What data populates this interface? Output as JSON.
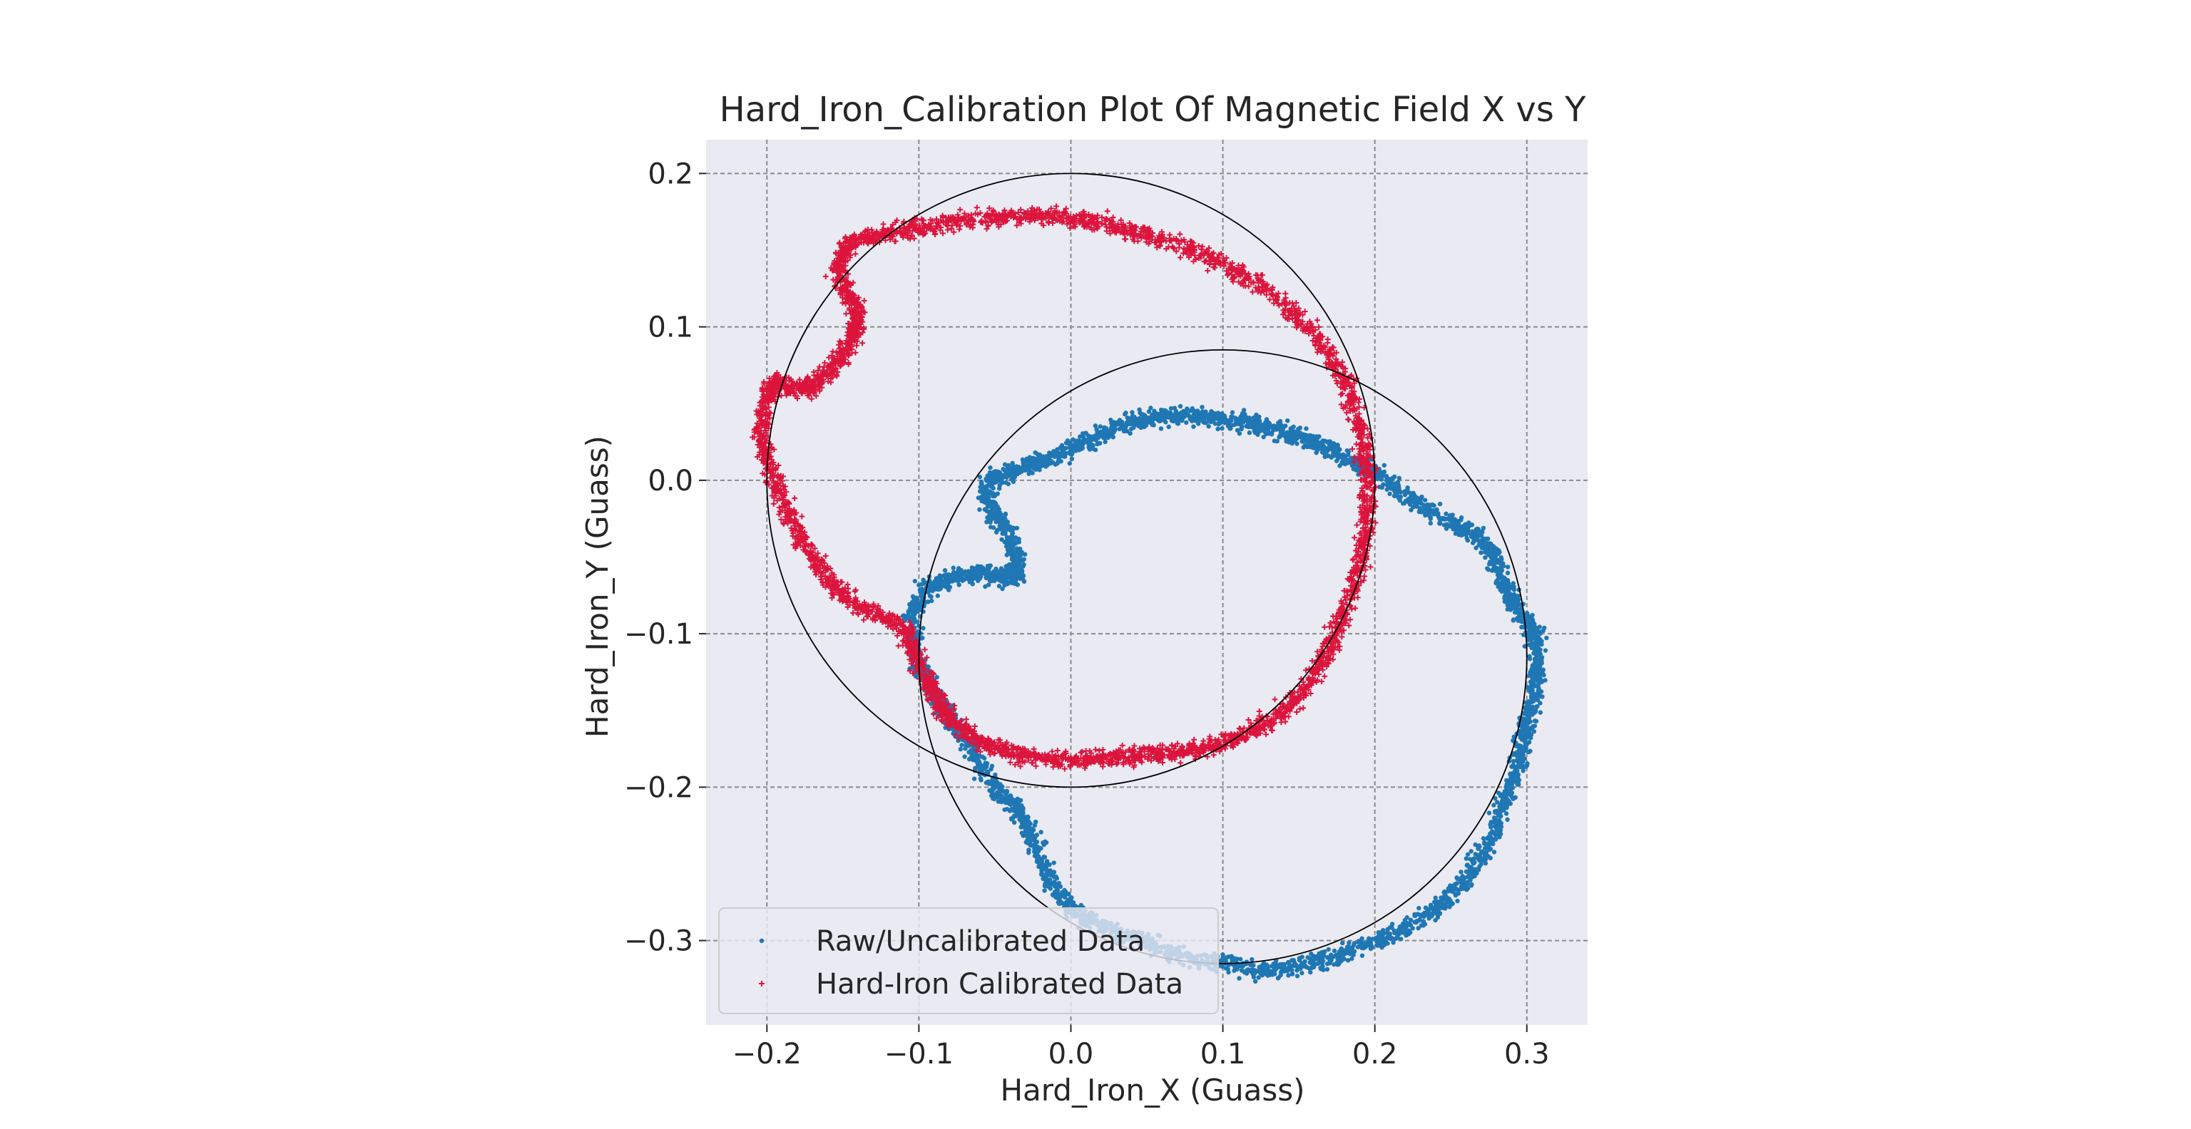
{
  "chart_data": {
    "type": "scatter",
    "title": "Hard_Iron_Calibration Plot Of Magnetic Field X vs Y",
    "xlabel": "Hard_Iron_X (Guass)",
    "ylabel": "Hard_Iron_Y (Guass)",
    "xlim": [
      -0.24,
      0.34
    ],
    "ylim": [
      -0.355,
      0.222
    ],
    "xticks": [
      -0.2,
      -0.1,
      0.0,
      0.1,
      0.2,
      0.3
    ],
    "xtick_labels": [
      "−0.2",
      "−0.1",
      "0.0",
      "0.1",
      "0.2",
      "0.3"
    ],
    "yticks": [
      -0.3,
      -0.2,
      -0.1,
      0.0,
      0.1,
      0.2
    ],
    "ytick_labels": [
      "−0.3",
      "−0.2",
      "−0.1",
      "0.0",
      "0.1",
      "0.2"
    ],
    "grid": true,
    "legend_position": "lower-left",
    "series": [
      {
        "name": "Raw/Uncalibrated Data",
        "color": "#1f77b4",
        "marker": "dot",
        "outline": [
          [
            -0.055,
            0.0
          ],
          [
            -0.053,
            -0.02
          ],
          [
            -0.04,
            -0.035
          ],
          [
            -0.035,
            -0.055
          ],
          [
            -0.04,
            -0.065
          ],
          [
            -0.06,
            -0.06
          ],
          [
            -0.08,
            -0.065
          ],
          [
            -0.095,
            -0.07
          ],
          [
            -0.105,
            -0.09
          ],
          [
            -0.1,
            -0.12
          ],
          [
            -0.09,
            -0.14
          ],
          [
            -0.08,
            -0.155
          ],
          [
            -0.065,
            -0.175
          ],
          [
            -0.05,
            -0.2
          ],
          [
            -0.035,
            -0.215
          ],
          [
            -0.025,
            -0.235
          ],
          [
            -0.015,
            -0.26
          ],
          [
            0.0,
            -0.28
          ],
          [
            0.02,
            -0.29
          ],
          [
            0.045,
            -0.3
          ],
          [
            0.07,
            -0.31
          ],
          [
            0.1,
            -0.315
          ],
          [
            0.13,
            -0.32
          ],
          [
            0.16,
            -0.315
          ],
          [
            0.19,
            -0.305
          ],
          [
            0.215,
            -0.295
          ],
          [
            0.24,
            -0.28
          ],
          [
            0.26,
            -0.26
          ],
          [
            0.275,
            -0.235
          ],
          [
            0.285,
            -0.21
          ],
          [
            0.295,
            -0.185
          ],
          [
            0.3,
            -0.16
          ],
          [
            0.305,
            -0.14
          ],
          [
            0.308,
            -0.12
          ],
          [
            0.305,
            -0.1
          ],
          [
            0.295,
            -0.085
          ],
          [
            0.285,
            -0.07
          ],
          [
            0.28,
            -0.05
          ],
          [
            0.265,
            -0.035
          ],
          [
            0.245,
            -0.025
          ],
          [
            0.22,
            -0.01
          ],
          [
            0.2,
            0.005
          ],
          [
            0.18,
            0.015
          ],
          [
            0.16,
            0.025
          ],
          [
            0.14,
            0.032
          ],
          [
            0.12,
            0.037
          ],
          [
            0.1,
            0.04
          ],
          [
            0.08,
            0.042
          ],
          [
            0.06,
            0.042
          ],
          [
            0.04,
            0.038
          ],
          [
            0.02,
            0.03
          ],
          [
            0.0,
            0.02
          ],
          [
            -0.02,
            0.012
          ],
          [
            -0.04,
            0.005
          ],
          [
            -0.055,
            0.0
          ]
        ]
      },
      {
        "name": "Hard-Iron Calibrated Data",
        "color": "#dc143c",
        "marker": "plus",
        "outline": [
          [
            -0.195,
            0.065
          ],
          [
            -0.185,
            0.06
          ],
          [
            -0.17,
            0.06
          ],
          [
            -0.155,
            0.075
          ],
          [
            -0.145,
            0.09
          ],
          [
            -0.14,
            0.105
          ],
          [
            -0.145,
            0.12
          ],
          [
            -0.155,
            0.14
          ],
          [
            -0.145,
            0.155
          ],
          [
            -0.125,
            0.16
          ],
          [
            -0.1,
            0.165
          ],
          [
            -0.07,
            0.17
          ],
          [
            -0.04,
            0.172
          ],
          [
            -0.01,
            0.172
          ],
          [
            0.02,
            0.168
          ],
          [
            0.05,
            0.16
          ],
          [
            0.08,
            0.15
          ],
          [
            0.11,
            0.135
          ],
          [
            0.14,
            0.115
          ],
          [
            0.165,
            0.09
          ],
          [
            0.18,
            0.065
          ],
          [
            0.19,
            0.035
          ],
          [
            0.195,
            0.005
          ],
          [
            0.195,
            -0.025
          ],
          [
            0.19,
            -0.055
          ],
          [
            0.18,
            -0.085
          ],
          [
            0.17,
            -0.11
          ],
          [
            0.155,
            -0.135
          ],
          [
            0.135,
            -0.155
          ],
          [
            0.11,
            -0.168
          ],
          [
            0.085,
            -0.175
          ],
          [
            0.06,
            -0.178
          ],
          [
            0.035,
            -0.18
          ],
          [
            0.01,
            -0.182
          ],
          [
            -0.015,
            -0.182
          ],
          [
            -0.04,
            -0.178
          ],
          [
            -0.06,
            -0.17
          ],
          [
            -0.08,
            -0.155
          ],
          [
            -0.09,
            -0.14
          ],
          [
            -0.1,
            -0.12
          ],
          [
            -0.11,
            -0.095
          ],
          [
            -0.135,
            -0.085
          ],
          [
            -0.155,
            -0.07
          ],
          [
            -0.17,
            -0.05
          ],
          [
            -0.185,
            -0.025
          ],
          [
            -0.195,
            0.0
          ],
          [
            -0.205,
            0.025
          ],
          [
            -0.2,
            0.05
          ],
          [
            -0.195,
            0.065
          ]
        ]
      }
    ],
    "fitted_circles": [
      {
        "center": [
          0.1,
          -0.115
        ],
        "radius": 0.2
      },
      {
        "center": [
          0.0,
          0.0
        ],
        "radius": 0.2
      }
    ]
  }
}
